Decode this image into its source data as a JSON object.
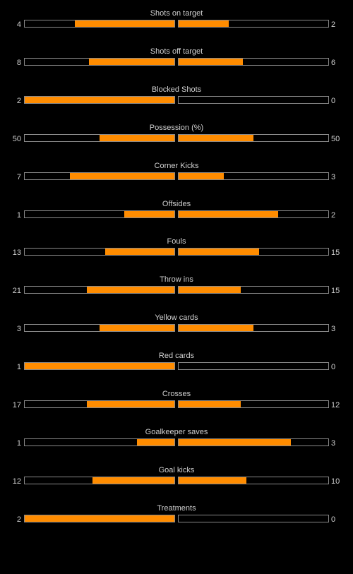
{
  "colors": {
    "background": "#000000",
    "bar_fill": "#ff8c00",
    "bar_border": "#8a8a8a",
    "text": "#d0d0d0"
  },
  "chart_data": {
    "type": "bar",
    "orientation": "horizontal-diverging",
    "categories": [
      "Shots on target",
      "Shots off target",
      "Blocked Shots",
      "Possession (%)",
      "Corner Kicks",
      "Offsides",
      "Fouls",
      "Throw ins",
      "Yellow cards",
      "Red cards",
      "Crosses",
      "Goalkeeper saves",
      "Goal kicks",
      "Treatments"
    ],
    "series": [
      {
        "values": [
          4,
          8,
          2,
          50,
          7,
          1,
          13,
          21,
          3,
          1,
          17,
          1,
          12,
          2
        ]
      },
      {
        "values": [
          2,
          6,
          0,
          50,
          3,
          2,
          15,
          15,
          3,
          0,
          12,
          3,
          10,
          0
        ]
      }
    ],
    "fill_fraction": "each side = own value / (home + away)",
    "grid": false,
    "legend": "none"
  },
  "stats": [
    {
      "label": "Shots on target",
      "home": "4",
      "away": "2"
    },
    {
      "label": "Shots off target",
      "home": "8",
      "away": "6"
    },
    {
      "label": "Blocked Shots",
      "home": "2",
      "away": "0"
    },
    {
      "label": "Possession (%)",
      "home": "50",
      "away": "50"
    },
    {
      "label": "Corner Kicks",
      "home": "7",
      "away": "3"
    },
    {
      "label": "Offsides",
      "home": "1",
      "away": "2"
    },
    {
      "label": "Fouls",
      "home": "13",
      "away": "15"
    },
    {
      "label": "Throw ins",
      "home": "21",
      "away": "15"
    },
    {
      "label": "Yellow cards",
      "home": "3",
      "away": "3"
    },
    {
      "label": "Red cards",
      "home": "1",
      "away": "0"
    },
    {
      "label": "Crosses",
      "home": "17",
      "away": "12"
    },
    {
      "label": "Goalkeeper saves",
      "home": "1",
      "away": "3"
    },
    {
      "label": "Goal kicks",
      "home": "12",
      "away": "10"
    },
    {
      "label": "Treatments",
      "home": "2",
      "away": "0"
    }
  ]
}
